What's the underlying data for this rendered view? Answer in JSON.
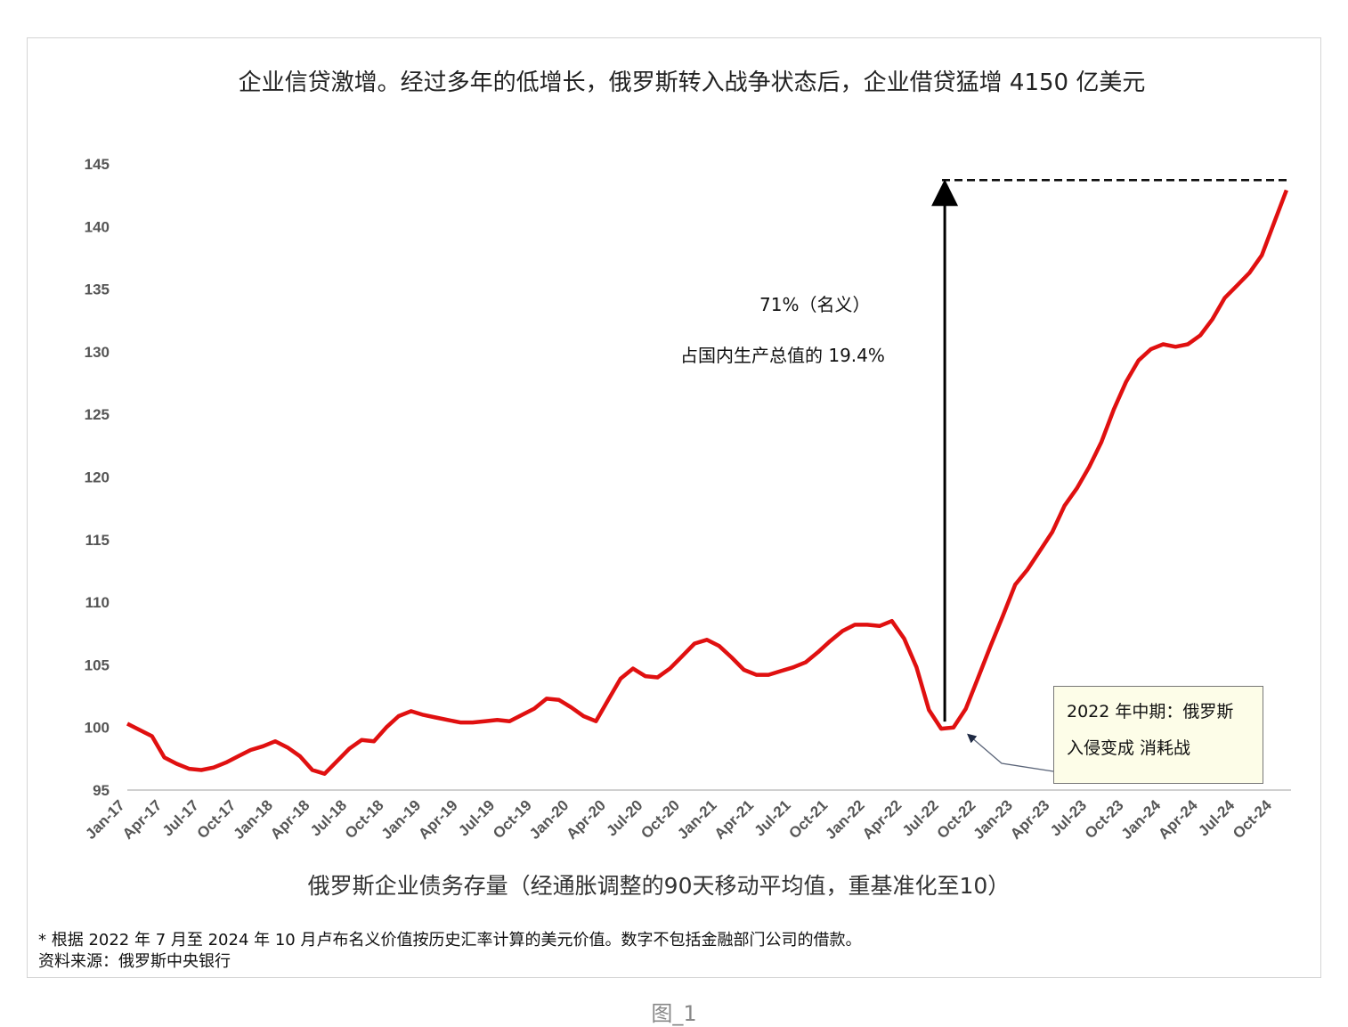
{
  "chart_data": {
    "type": "line",
    "title": "企业信贷激增。经过多年的低增长，俄罗斯转入战争状态后，企业借贷猛增 4150 亿美元",
    "xlabel": "俄罗斯企业债务存量（经通胀调整的90天移动平均值，重基准化至10）",
    "ylabel": "",
    "ylim": [
      95,
      145
    ],
    "yticks": [
      95,
      100,
      105,
      110,
      115,
      120,
      125,
      130,
      135,
      140,
      145
    ],
    "xticks": [
      "Jan-17",
      "Apr-17",
      "Jul-17",
      "Oct-17",
      "Jan-18",
      "Apr-18",
      "Jul-18",
      "Oct-18",
      "Jan-19",
      "Apr-19",
      "Jul-19",
      "Oct-19",
      "Jan-20",
      "Apr-20",
      "Jul-20",
      "Oct-20",
      "Jan-21",
      "Apr-21",
      "Jul-21",
      "Oct-21",
      "Jan-22",
      "Apr-22",
      "Jul-22",
      "Oct-22",
      "Jan-23",
      "Apr-23",
      "Jul-23",
      "Oct-23",
      "Jan-24",
      "Apr-24",
      "Jul-24",
      "Oct-24"
    ],
    "x_start": "Jan-17",
    "x_frequency": "monthly",
    "series": [
      {
        "name": "俄罗斯企业债务存量",
        "color": "#e01010",
        "values": [
          100.3,
          99.8,
          99.3,
          97.6,
          97.1,
          96.7,
          96.6,
          96.8,
          97.2,
          97.7,
          98.2,
          98.5,
          98.9,
          98.4,
          97.7,
          96.6,
          96.3,
          97.3,
          98.3,
          99.0,
          98.9,
          100.0,
          100.9,
          101.3,
          101.0,
          100.8,
          100.6,
          100.4,
          100.4,
          100.5,
          100.6,
          100.5,
          101.0,
          101.5,
          102.3,
          102.2,
          101.6,
          100.9,
          100.5,
          102.2,
          103.9,
          104.7,
          104.1,
          104.0,
          104.7,
          105.7,
          106.7,
          107.0,
          106.5,
          105.6,
          104.6,
          104.2,
          104.2,
          104.5,
          104.8,
          105.2,
          106.0,
          106.9,
          107.7,
          108.2,
          108.2,
          108.1,
          108.5,
          107.1,
          104.8,
          101.4,
          99.9,
          100.0,
          101.5,
          104.0,
          106.5,
          108.9,
          111.4,
          112.6,
          114.1,
          115.6,
          117.7,
          119.1,
          120.8,
          122.8,
          125.4,
          127.6,
          129.3,
          130.2,
          130.6,
          130.4,
          130.6,
          131.3,
          132.6,
          134.3,
          135.3,
          136.3,
          137.7,
          140.3,
          142.9
        ]
      }
    ],
    "reference_line": {
      "value": 143.7,
      "style": "dashed"
    },
    "annotations": {
      "growth": "71%（名义）",
      "gdp_share": "占国内生产总值的 19.4%",
      "box_line1": "2022 年中期：俄罗斯",
      "box_line2": "入侵变成  消耗战"
    },
    "grid": false,
    "legend": "none"
  },
  "footer": {
    "note": "* 根据 2022 年 7 月至 2024 年 10 月卢布名义价值按历史汇率计算的美元价值。数字不包括金融部门公司的借款。",
    "source": "资料来源：俄罗斯中央银行"
  },
  "figure_caption": "图_1"
}
